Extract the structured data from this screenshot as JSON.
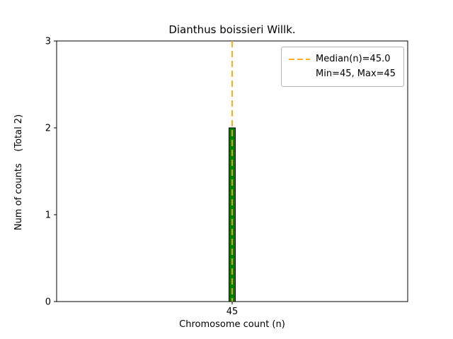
{
  "chart_data": {
    "type": "bar",
    "title": "Dianthus boissieri Willk.",
    "xlabel": "Chromosome count (n)",
    "ylabel": "Num of counts    (Total 2)",
    "categories": [
      "45"
    ],
    "values": [
      2
    ],
    "ylim": [
      0,
      3
    ],
    "yticks": [
      0,
      1,
      2,
      3
    ],
    "grid": false,
    "bar_color": "#008000",
    "bar_edge_color": "#000000",
    "median_line": {
      "value": 45.0,
      "color": "#ffa500",
      "style": "dashed"
    },
    "legend": {
      "position": "upper right",
      "entries": [
        {
          "marker": "dashed-line",
          "label": "Median(n)=45.0"
        },
        {
          "marker": "none",
          "label": "Min=45, Max=45"
        }
      ]
    }
  }
}
